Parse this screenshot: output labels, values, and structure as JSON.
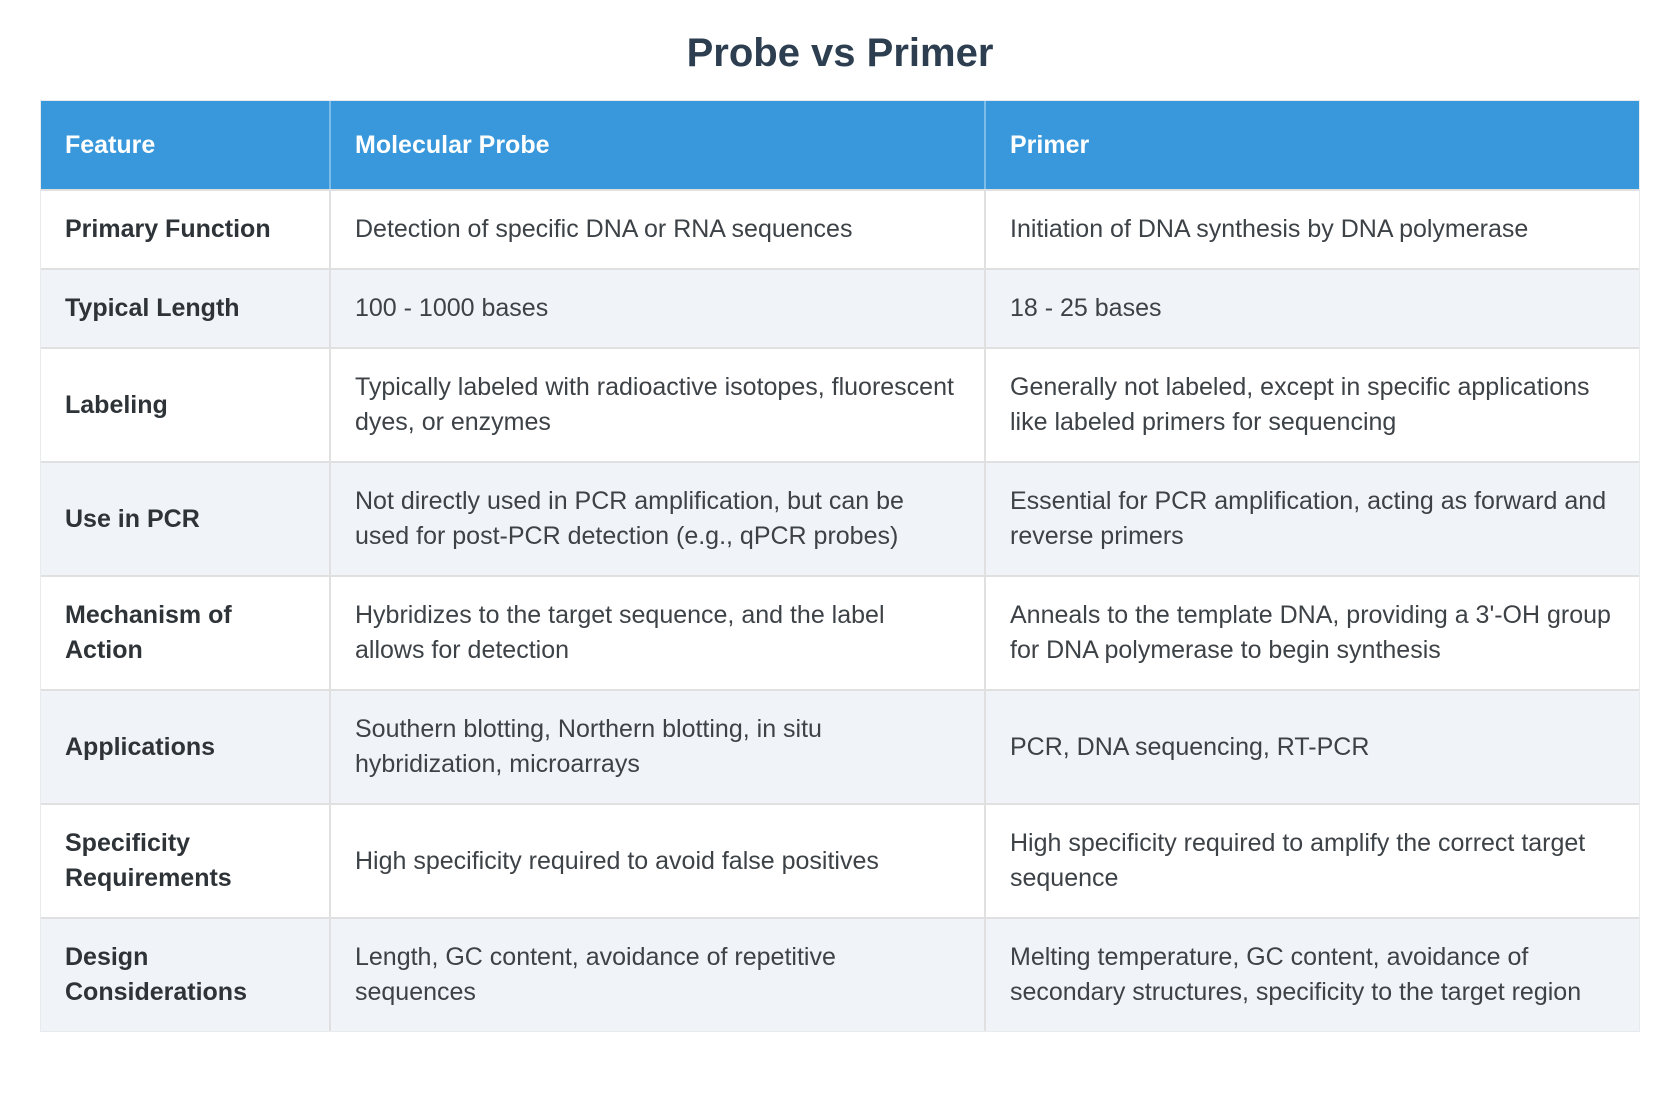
{
  "page_title": "Probe vs Primer",
  "table": {
    "columns": [
      "Feature",
      "Molecular Probe",
      "Primer"
    ],
    "rows": [
      {
        "feature": "Primary Function",
        "probe": "Detection of specific DNA or RNA sequences",
        "primer": "Initiation of DNA synthesis by DNA polymerase"
      },
      {
        "feature": "Typical Length",
        "probe": "100 - 1000 bases",
        "primer": "18 - 25 bases"
      },
      {
        "feature": "Labeling",
        "probe": "Typically labeled with radioactive isotopes, fluorescent dyes, or enzymes",
        "primer": "Generally not labeled, except in specific applications like labeled primers for sequencing"
      },
      {
        "feature": "Use in PCR",
        "probe": "Not directly used in PCR amplification, but can be used for post-PCR detection (e.g., qPCR probes)",
        "primer": "Essential for PCR amplification, acting as forward and reverse primers"
      },
      {
        "feature": "Mechanism of Action",
        "probe": "Hybridizes to the target sequence, and the label allows for detection",
        "primer": "Anneals to the template DNA, providing a 3'-OH group for DNA polymerase to begin synthesis"
      },
      {
        "feature": "Applications",
        "probe": "Southern blotting, Northern blotting, in situ hybridization, microarrays",
        "primer": "PCR, DNA sequencing, RT-PCR"
      },
      {
        "feature": "Specificity Requirements",
        "probe": "High specificity required to avoid false positives",
        "primer": "High specificity required to amplify the correct target sequence"
      },
      {
        "feature": "Design Considerations",
        "probe": "Length, GC content, avoidance of repetitive sequences",
        "primer": "Melting temperature, GC content, avoidance of secondary structures, specificity to the target region"
      }
    ]
  },
  "colors": {
    "header_bg": "#3898db",
    "row_alt_bg": "#f0f4f8",
    "border": "#e0e0e0",
    "title_text": "#2c3e50",
    "body_text": "#3d4247",
    "header_text": "#ffffff"
  }
}
